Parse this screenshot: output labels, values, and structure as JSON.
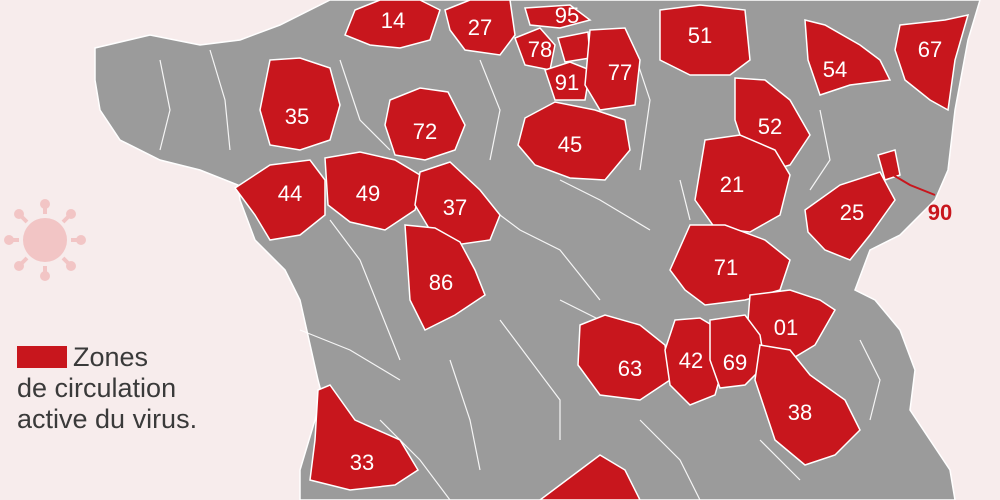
{
  "colors": {
    "background": "#f7ecec",
    "land": "#9b9b9b",
    "active_zone": "#c8161d",
    "border": "#ffffff",
    "virus_icon": "#f2c5c5"
  },
  "legend": {
    "line1": "Zones",
    "line2": "de circulation",
    "line3": "active du virus."
  },
  "departments": [
    {
      "code": "14"
    },
    {
      "code": "27"
    },
    {
      "code": "95"
    },
    {
      "code": "78"
    },
    {
      "code": "91"
    },
    {
      "code": "77"
    },
    {
      "code": "51"
    },
    {
      "code": "54"
    },
    {
      "code": "67"
    },
    {
      "code": "35"
    },
    {
      "code": "72"
    },
    {
      "code": "45"
    },
    {
      "code": "52"
    },
    {
      "code": "44"
    },
    {
      "code": "49"
    },
    {
      "code": "37"
    },
    {
      "code": "21"
    },
    {
      "code": "25"
    },
    {
      "code": "90"
    },
    {
      "code": "86"
    },
    {
      "code": "71"
    },
    {
      "code": "01"
    },
    {
      "code": "63"
    },
    {
      "code": "42"
    },
    {
      "code": "69"
    },
    {
      "code": "38"
    },
    {
      "code": "33"
    }
  ],
  "icons": [
    "virus-icon"
  ]
}
